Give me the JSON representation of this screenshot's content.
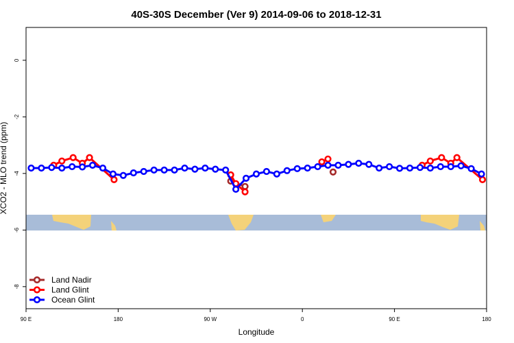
{
  "chart_data": {
    "type": "line",
    "title": "40S-30S December (Ver 9)   2014-09-06 to 2018-12-31",
    "x_label": "Longitude",
    "y_label": "XCO2 - MLO trend (ppm)",
    "xlim": [
      90,
      540
    ],
    "xticks": [
      {
        "value": 90,
        "label": "90 E"
      },
      180,
      {
        "value": 270,
        "label": "90 W"
      },
      {
        "value": 360,
        "label": "0"
      },
      {
        "value": 450,
        "label": "90 E"
      },
      {
        "value": 540,
        "label": "180"
      }
    ],
    "ylim": [
      -8.78,
      1.16
    ],
    "yticks": [
      0,
      -2,
      -4,
      -6,
      -8
    ],
    "legend": "bottom-left",
    "series": [
      {
        "name": "Land Nadir",
        "color": "#a52a2a",
        "x": [
          290,
          304,
          null,
          390
        ],
        "values": [
          -4.27,
          -4.46,
          null,
          -3.95
        ]
      },
      {
        "name": "Land Glint",
        "color": "#ff0000",
        "x": [
          117,
          125,
          136,
          145,
          152,
          176,
          null,
          290,
          295,
          304,
          null,
          379,
          385,
          null,
          477,
          485,
          496,
          505,
          511,
          536
        ],
        "values": [
          -3.71,
          -3.56,
          -3.44,
          -3.64,
          -3.44,
          -4.22,
          null,
          -4.05,
          -4.36,
          -4.65,
          null,
          -3.59,
          -3.49,
          null,
          -3.71,
          -3.56,
          -3.44,
          -3.64,
          -3.44,
          -4.22
        ]
      },
      {
        "name": "Ocean Glint",
        "color": "#0000ff",
        "x": [
          95,
          105,
          115,
          125,
          135,
          145,
          155,
          165,
          175,
          185,
          195,
          205,
          215,
          225,
          235,
          245,
          255,
          265,
          275,
          285,
          295,
          305,
          315,
          325,
          335,
          345,
          355,
          365,
          375,
          385,
          395,
          405,
          415,
          425,
          435,
          445,
          455,
          465,
          475,
          485,
          495,
          505,
          515,
          525,
          535
        ],
        "values": [
          -3.81,
          -3.81,
          -3.79,
          -3.81,
          -3.76,
          -3.77,
          -3.71,
          -3.81,
          -4.02,
          -4.07,
          -3.98,
          -3.93,
          -3.88,
          -3.88,
          -3.88,
          -3.81,
          -3.85,
          -3.81,
          -3.85,
          -3.88,
          -4.56,
          -4.17,
          -4.02,
          -3.93,
          -4.02,
          -3.9,
          -3.83,
          -3.81,
          -3.76,
          -3.71,
          -3.71,
          -3.68,
          -3.64,
          -3.68,
          -3.81,
          -3.76,
          -3.82,
          -3.81,
          -3.79,
          -3.81,
          -3.76,
          -3.76,
          -3.73,
          -3.83,
          -4.02
        ]
      }
    ]
  }
}
